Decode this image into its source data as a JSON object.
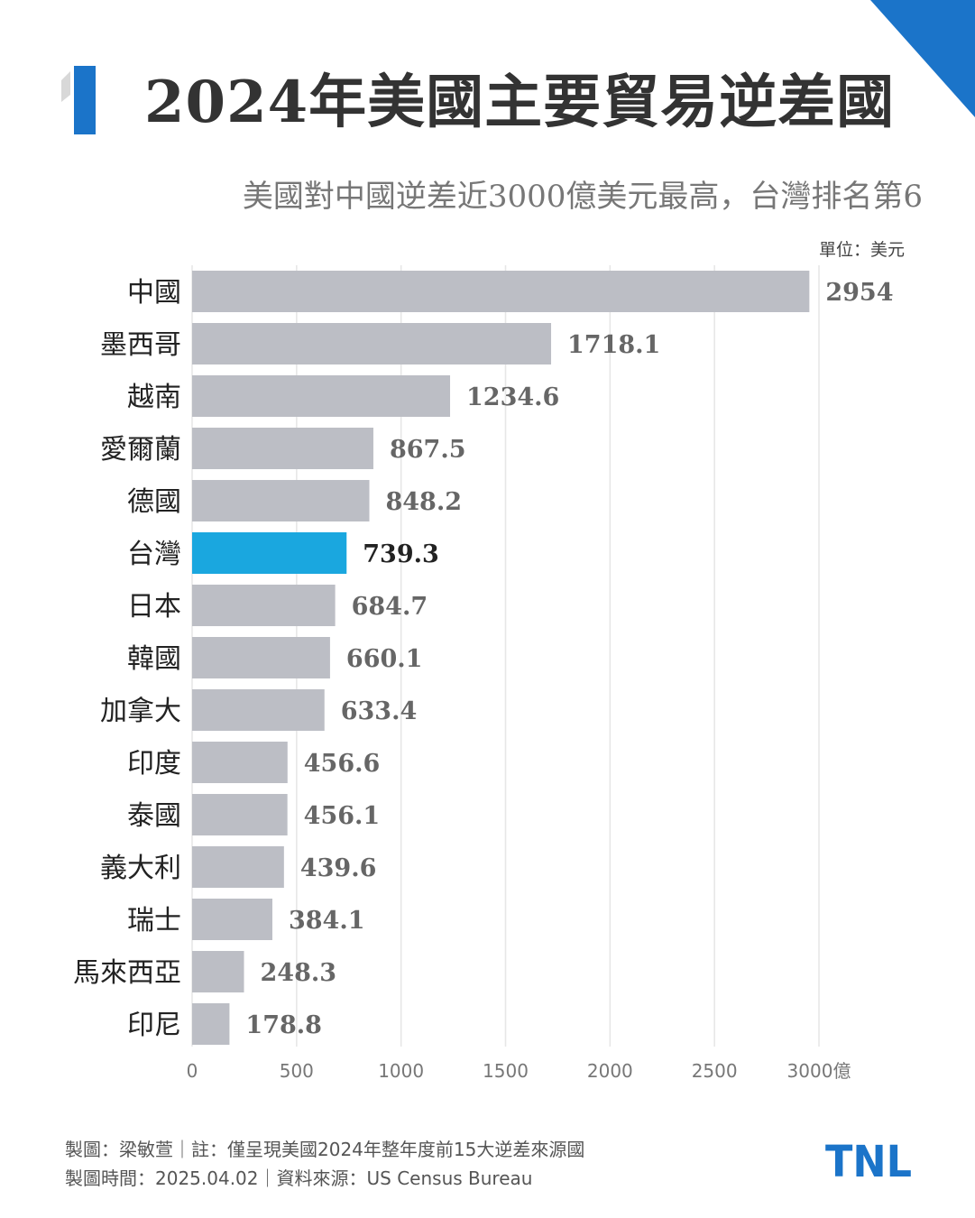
{
  "title": "2024年美國主要貿易逆差國",
  "subtitle": "美國對中國逆差近3000億美元最高，台灣排名第6",
  "unit_label": "單位：美元",
  "colors": {
    "accent": "#1b74c9",
    "highlight": "#1aa7df",
    "bar": "#bcbec5"
  },
  "chart_data": {
    "type": "bar",
    "orientation": "horizontal",
    "title": "2024年美國主要貿易逆差國",
    "categories": [
      "中國",
      "墨西哥",
      "越南",
      "愛爾蘭",
      "德國",
      "台灣",
      "日本",
      "韓國",
      "加拿大",
      "印度",
      "泰國",
      "義大利",
      "瑞士",
      "馬來西亞",
      "印尼"
    ],
    "values": [
      2954,
      1718.1,
      1234.6,
      867.5,
      848.2,
      739.3,
      684.7,
      660.1,
      633.4,
      456.6,
      456.1,
      439.6,
      384.1,
      248.3,
      178.8
    ],
    "value_labels": [
      "2954",
      "1718.1",
      "1234.6",
      "867.5",
      "848.2",
      "739.3",
      "684.7",
      "660.1",
      "633.4",
      "456.6",
      "456.1",
      "439.6",
      "384.1",
      "248.3",
      "178.8"
    ],
    "highlight": "台灣",
    "xlim": [
      0,
      3000
    ],
    "ticks": [
      0,
      500,
      1000,
      1500,
      2000,
      2500,
      3000
    ],
    "tick_labels": [
      "0",
      "500",
      "1000",
      "1500",
      "2000",
      "2500",
      "3000億"
    ],
    "grid": true
  },
  "footer": {
    "line1": "製圖：梁敏萱｜註：僅呈現美國2024年整年度前15大逆差來源國",
    "line2": "製圖時間：2025.04.02｜資料來源：US Census Bureau"
  },
  "logo": {
    "text": "TNL"
  }
}
